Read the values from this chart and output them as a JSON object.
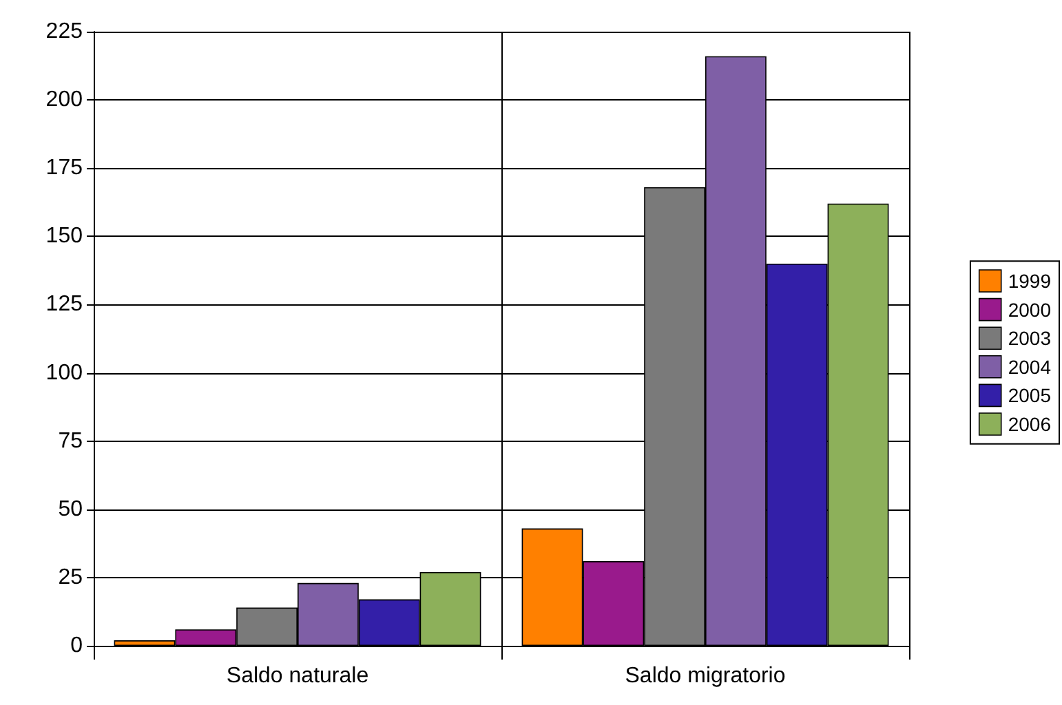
{
  "chart_data": {
    "type": "bar",
    "categories": [
      "Saldo naturale",
      "Saldo migratorio"
    ],
    "series": [
      {
        "name": "1999",
        "color": "#ff8000",
        "values": [
          2,
          43
        ]
      },
      {
        "name": "2000",
        "color": "#991a8c",
        "values": [
          6,
          31
        ]
      },
      {
        "name": "2003",
        "color": "#7a7a7a",
        "values": [
          14,
          168
        ]
      },
      {
        "name": "2004",
        "color": "#7f5fa6",
        "values": [
          23,
          216
        ]
      },
      {
        "name": "2005",
        "color": "#331fa8",
        "values": [
          17,
          140
        ]
      },
      {
        "name": "2006",
        "color": "#8db05a",
        "values": [
          27,
          162
        ]
      }
    ],
    "ylim": [
      0,
      225
    ],
    "yticks": [
      0,
      25,
      50,
      75,
      100,
      125,
      150,
      175,
      200,
      225
    ],
    "grid": true,
    "legend": "right"
  }
}
